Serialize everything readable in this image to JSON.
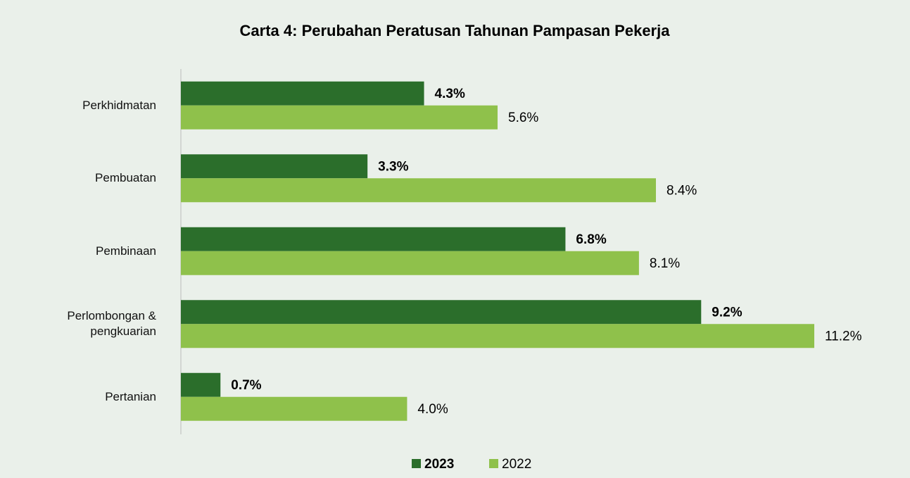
{
  "chart_data": {
    "type": "bar",
    "orientation": "horizontal",
    "title": "Carta 4: Perubahan Peratusan Tahunan Pampasan Pekerja",
    "categories": [
      "Perkhidmatan",
      "Pembuatan",
      "Pembinaan",
      "Perlombongan & pengkuarian",
      "Pertanian"
    ],
    "series": [
      {
        "name": "2023",
        "color": "#2b6e2b",
        "values": [
          4.3,
          3.3,
          6.8,
          9.2,
          0.7
        ],
        "value_labels": [
          "4.3%",
          "3.3%",
          "6.8%",
          "9.2%",
          "0.7%"
        ]
      },
      {
        "name": "2022",
        "color": "#8fc14b",
        "values": [
          5.6,
          8.4,
          8.1,
          11.2,
          4.0
        ],
        "value_labels": [
          "5.6%",
          "8.4%",
          "8.1%",
          "11.2%",
          "4.0%"
        ]
      }
    ],
    "legend": "bottom"
  }
}
